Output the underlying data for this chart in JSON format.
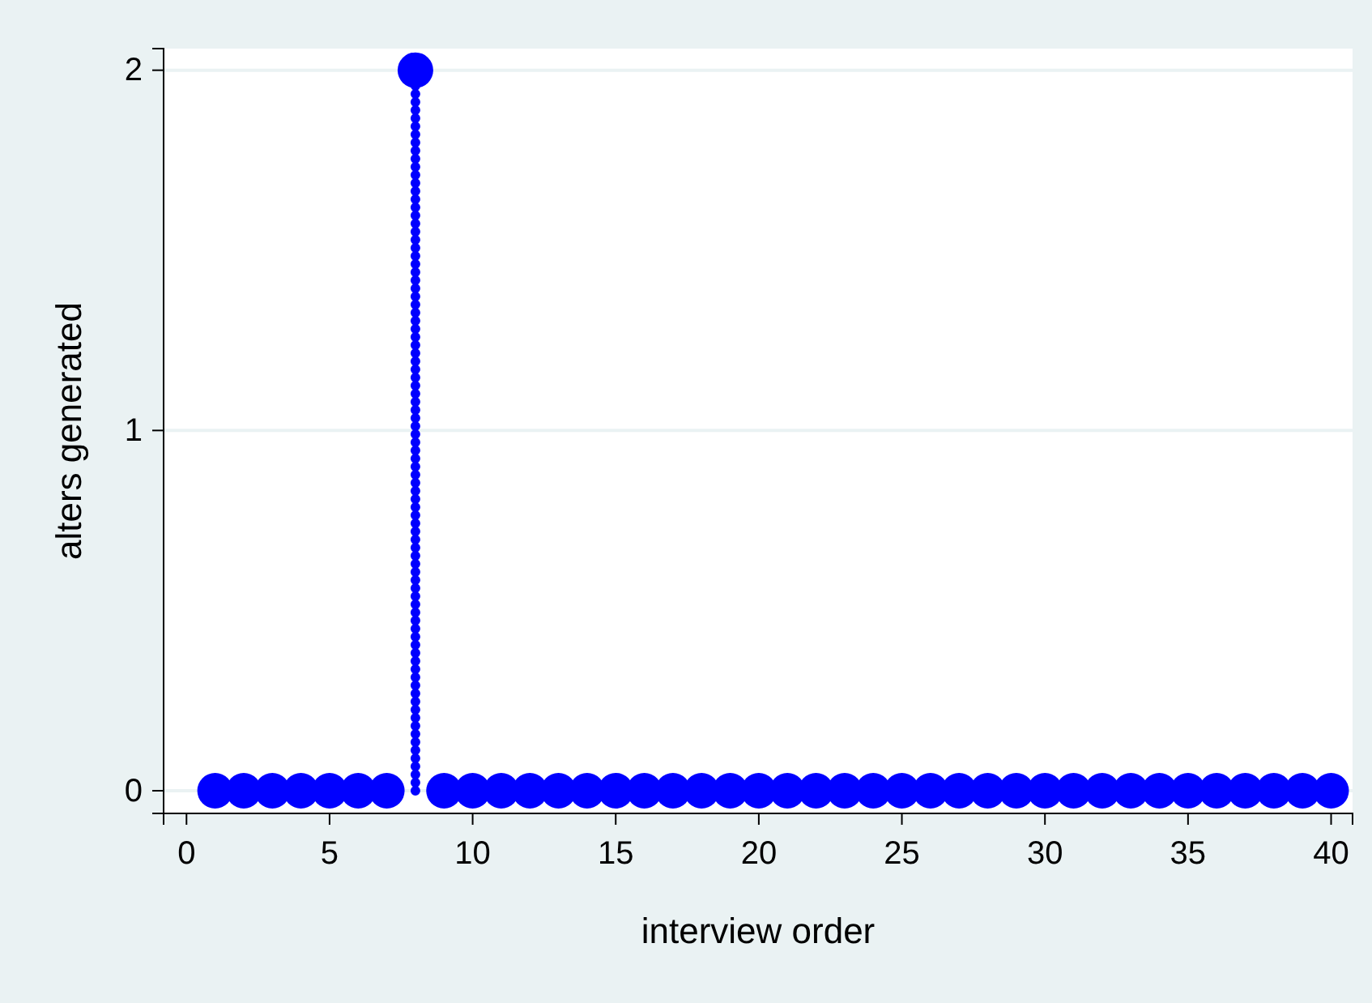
{
  "chart_data": {
    "type": "lollipop",
    "xlabel": "interview order",
    "ylabel": "alters generated",
    "x": [
      1,
      2,
      3,
      4,
      5,
      6,
      7,
      8,
      9,
      10,
      11,
      12,
      13,
      14,
      15,
      16,
      17,
      18,
      19,
      20,
      21,
      22,
      23,
      24,
      25,
      26,
      27,
      28,
      29,
      30,
      31,
      32,
      33,
      34,
      35,
      36,
      37,
      38,
      39,
      40
    ],
    "values": [
      0,
      0,
      0,
      0,
      0,
      0,
      0,
      2,
      0,
      0,
      0,
      0,
      0,
      0,
      0,
      0,
      0,
      0,
      0,
      0,
      0,
      0,
      0,
      0,
      0,
      0,
      0,
      0,
      0,
      0,
      0,
      0,
      0,
      0,
      0,
      0,
      0,
      0,
      0,
      0
    ],
    "color": "#0000ff",
    "marker": "circle",
    "xlim": [
      -0.8,
      40.75
    ],
    "xticks": [
      0,
      5,
      10,
      15,
      20,
      25,
      30,
      35,
      40
    ],
    "ylim": [
      -0.063,
      2.06
    ],
    "yticks": [
      0,
      1,
      2
    ],
    "grid": "y"
  }
}
